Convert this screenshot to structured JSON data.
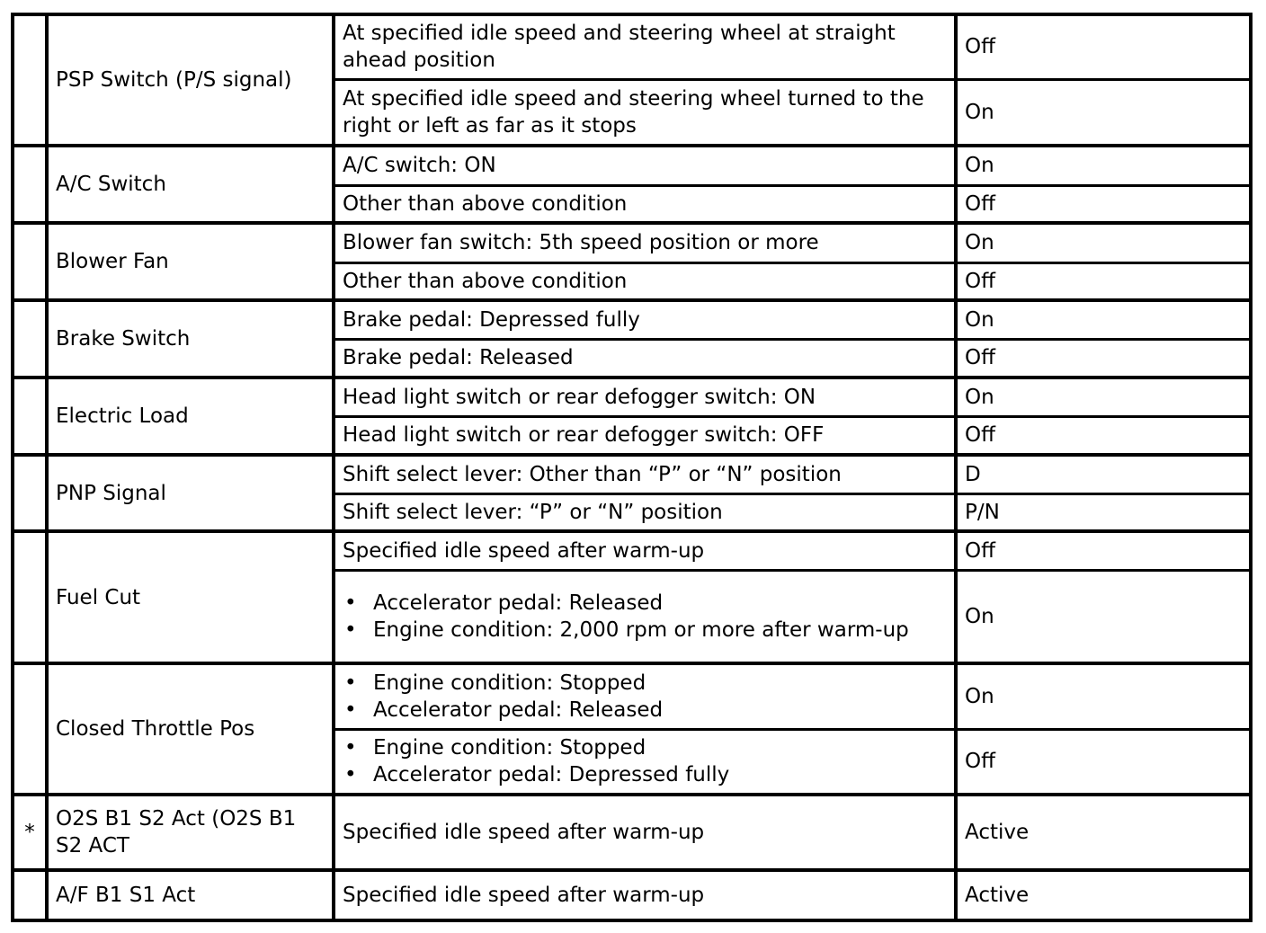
{
  "groups": [
    {
      "marker": "",
      "item": "PSP Switch (P/S signal)",
      "conditions": [
        {
          "text": "At specified idle speed and steering wheel at straight ahead position",
          "value": "Off"
        },
        {
          "text": "At specified idle speed and steering wheel turned to the right or left as far as it stops",
          "value": "On"
        }
      ]
    },
    {
      "marker": "",
      "item": "A/C Switch",
      "conditions": [
        {
          "text": "A/C switch: ON",
          "value": "On"
        },
        {
          "text": "Other than above condition",
          "value": "Off"
        }
      ]
    },
    {
      "marker": "",
      "item": "Blower Fan",
      "conditions": [
        {
          "text": "Blower fan switch: 5th speed position or more",
          "value": "On"
        },
        {
          "text": "Other than above condition",
          "value": "Off"
        }
      ]
    },
    {
      "marker": "",
      "item": "Brake Switch",
      "conditions": [
        {
          "text": "Brake pedal: Depressed fully",
          "value": "On"
        },
        {
          "text": "Brake pedal: Released",
          "value": "Off"
        }
      ]
    },
    {
      "marker": "",
      "item": "Electric Load",
      "conditions": [
        {
          "text": "Head light switch or rear defogger switch: ON",
          "value": "On"
        },
        {
          "text": "Head light switch or rear defogger switch: OFF",
          "value": "Off"
        }
      ]
    },
    {
      "marker": "",
      "item": "PNP Signal",
      "conditions": [
        {
          "text": "Shift select lever: Other than “P” or “N” position",
          "value": "D"
        },
        {
          "text": "Shift select lever: “P” or “N” position",
          "value": "P/N"
        }
      ]
    },
    {
      "marker": "",
      "item": "Fuel Cut",
      "conditions": [
        {
          "text": "Specified idle speed after warm-up",
          "value": "Off"
        },
        {
          "bullets": [
            "Accelerator pedal: Released",
            "Engine condition: 2,000 rpm or more after warm-up"
          ],
          "value": "On"
        }
      ]
    },
    {
      "marker": "",
      "item": "Closed Throttle Pos",
      "conditions": [
        {
          "bullets": [
            "Engine condition: Stopped",
            "Accelerator pedal: Released"
          ],
          "value": "On"
        },
        {
          "bullets": [
            "Engine condition: Stopped",
            "Accelerator pedal: Depressed fully"
          ],
          "value": "Off"
        }
      ]
    },
    {
      "marker": "*",
      "item": "O2S B1 S2 Act (O2S B1 S2 ACT",
      "conditions": [
        {
          "text": "Specified idle speed after warm-up",
          "value": "Active"
        }
      ]
    },
    {
      "marker": "",
      "item": "A/F B1 S1 Act",
      "conditions": [
        {
          "text": "Specified idle speed after warm-up",
          "value": "Active"
        }
      ]
    }
  ]
}
